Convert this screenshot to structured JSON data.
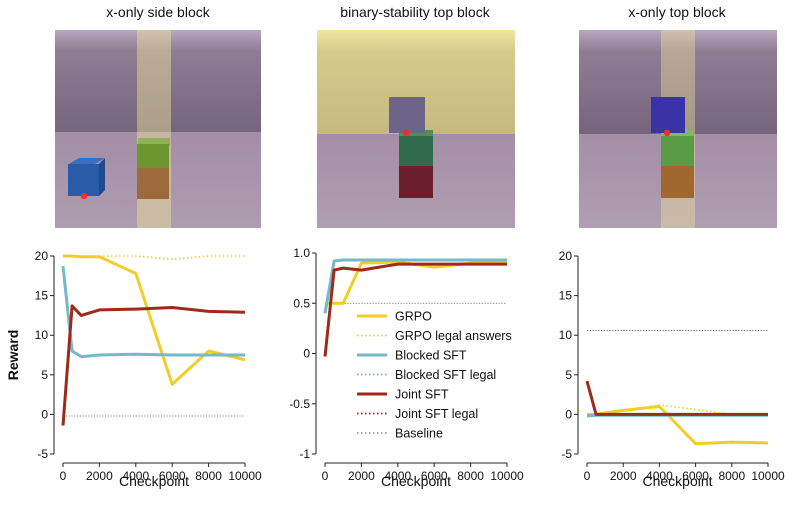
{
  "panels": [
    {
      "title": "x-only side block",
      "scene": "Two-cube tower with a blue cube on the floor to the left"
    },
    {
      "title": "binary-stability top block",
      "scene": "Purple cube placed on top of a two-cube tower"
    },
    {
      "title": "x-only top block",
      "scene": "Blue cube on top of green and orange cubes"
    }
  ],
  "colors": {
    "grpo": "#f2cd2a",
    "blocked": "#74b8c9",
    "joint": "#9c2b1a",
    "baseline": "#555555"
  },
  "legend": {
    "items": [
      {
        "label": "GRPO",
        "series": "grpo",
        "style": "solid"
      },
      {
        "label": "GRPO legal answers",
        "series": "grpo",
        "style": "dotted"
      },
      {
        "label": "Blocked SFT",
        "series": "blocked",
        "style": "solid"
      },
      {
        "label": "Blocked SFT legal",
        "series": "blocked",
        "style": "dotted"
      },
      {
        "label": "Joint SFT",
        "series": "joint",
        "style": "solid"
      },
      {
        "label": "Joint SFT legal",
        "series": "joint",
        "style": "dotted"
      },
      {
        "label": "Baseline",
        "series": "baseline",
        "style": "dotted"
      }
    ]
  },
  "chart_data": [
    {
      "type": "line",
      "title": "x-only side block",
      "xlabel": "Checkpoint",
      "ylabel": "Reward",
      "xlim": [
        0,
        10000
      ],
      "ylim": [
        -5,
        20
      ],
      "xticks": [
        0,
        2000,
        4000,
        6000,
        8000,
        10000
      ],
      "yticks": [
        -5,
        0,
        5,
        10,
        15,
        20
      ],
      "baseline": -0.2,
      "series": [
        {
          "name": "GRPO legal answers",
          "key": "grpo",
          "style": "dotted",
          "x": [
            0,
            500,
            1000,
            2000,
            4000,
            6000,
            8000,
            10000
          ],
          "y": [
            20,
            20,
            20,
            20,
            20,
            19.6,
            20,
            20
          ]
        },
        {
          "name": "Blocked SFT legal",
          "key": "blocked",
          "style": "dotted",
          "x": [
            0,
            500,
            1000,
            2000,
            4000,
            6000,
            8000,
            10000
          ],
          "y": [
            18.7,
            8.0,
            7.3,
            7.5,
            7.6,
            7.5,
            7.5,
            7.5
          ]
        },
        {
          "name": "Joint SFT legal",
          "key": "joint",
          "style": "dotted",
          "x": [
            0,
            500,
            1000,
            2000,
            4000,
            6000,
            8000,
            10000
          ],
          "y": [
            -1.4,
            13.7,
            12.5,
            13.2,
            13.3,
            13.5,
            13.0,
            12.9
          ]
        },
        {
          "name": "GRPO",
          "key": "grpo",
          "style": "solid",
          "x": [
            0,
            500,
            1000,
            2000,
            4000,
            6000,
            8000,
            10000
          ],
          "y": [
            20,
            20,
            19.9,
            19.9,
            17.8,
            3.8,
            8.0,
            6.9
          ]
        },
        {
          "name": "Blocked SFT",
          "key": "blocked",
          "style": "solid",
          "x": [
            0,
            500,
            1000,
            2000,
            4000,
            6000,
            8000,
            10000
          ],
          "y": [
            18.7,
            8.0,
            7.3,
            7.5,
            7.6,
            7.5,
            7.5,
            7.5
          ]
        },
        {
          "name": "Joint SFT",
          "key": "joint",
          "style": "solid",
          "x": [
            0,
            500,
            1000,
            2000,
            4000,
            6000,
            8000,
            10000
          ],
          "y": [
            -1.4,
            13.7,
            12.5,
            13.2,
            13.3,
            13.5,
            13.0,
            12.9
          ]
        }
      ]
    },
    {
      "type": "line",
      "title": "binary-stability top block",
      "xlabel": "Checkpoint",
      "ylabel": "",
      "xlim": [
        0,
        10000
      ],
      "ylim": [
        -1,
        1
      ],
      "xticks": [
        0,
        2000,
        4000,
        6000,
        8000,
        10000
      ],
      "yticks": [
        -1,
        -0.5,
        0,
        0.5,
        1
      ],
      "ytick_labels": [
        "-1",
        "-0.5",
        "0",
        "0.5",
        "1.0"
      ],
      "baseline": 0.5,
      "series": [
        {
          "name": "GRPO legal answers",
          "key": "grpo",
          "style": "dotted",
          "x": [
            0,
            500,
            1000,
            2000,
            4000,
            6000,
            8000,
            10000
          ],
          "y": [
            0.5,
            0.5,
            0.5,
            0.9,
            0.91,
            0.86,
            0.9,
            0.92
          ]
        },
        {
          "name": "Blocked SFT legal",
          "key": "blocked",
          "style": "dotted",
          "x": [
            0,
            500,
            1000,
            2000,
            4000,
            6000,
            8000,
            10000
          ],
          "y": [
            0.4,
            0.92,
            0.93,
            0.93,
            0.93,
            0.93,
            0.93,
            0.93
          ]
        },
        {
          "name": "Joint SFT legal",
          "key": "joint",
          "style": "dotted",
          "x": [
            0,
            500,
            1000,
            2000,
            4000,
            6000,
            8000,
            10000
          ],
          "y": [
            -0.03,
            0.83,
            0.85,
            0.83,
            0.89,
            0.89,
            0.89,
            0.89
          ]
        },
        {
          "name": "GRPO",
          "key": "grpo",
          "style": "solid",
          "x": [
            0,
            500,
            1000,
            2000,
            4000,
            6000,
            8000,
            10000
          ],
          "y": [
            0.5,
            0.5,
            0.5,
            0.9,
            0.91,
            0.86,
            0.9,
            0.92
          ]
        },
        {
          "name": "Blocked SFT",
          "key": "blocked",
          "style": "solid",
          "x": [
            0,
            500,
            1000,
            2000,
            4000,
            6000,
            8000,
            10000
          ],
          "y": [
            0.4,
            0.92,
            0.93,
            0.93,
            0.93,
            0.93,
            0.93,
            0.93
          ]
        },
        {
          "name": "Joint SFT",
          "key": "joint",
          "style": "solid",
          "x": [
            0,
            500,
            1000,
            2000,
            4000,
            6000,
            8000,
            10000
          ],
          "y": [
            -0.03,
            0.83,
            0.85,
            0.83,
            0.89,
            0.89,
            0.89,
            0.89
          ]
        }
      ]
    },
    {
      "type": "line",
      "title": "x-only top block",
      "xlabel": "Checkpoint",
      "ylabel": "",
      "xlim": [
        0,
        10000
      ],
      "ylim": [
        -5,
        20
      ],
      "xticks": [
        0,
        2000,
        4000,
        6000,
        8000,
        10000
      ],
      "yticks": [
        -5,
        0,
        5,
        10,
        15,
        20
      ],
      "baseline": 10.6,
      "series": [
        {
          "name": "GRPO legal answers",
          "key": "grpo",
          "style": "dotted",
          "x": [
            0,
            500,
            1000,
            2000,
            4000,
            6000,
            8000,
            10000
          ],
          "y": [
            0,
            0,
            0.2,
            0.5,
            1.2,
            0.6,
            0,
            0
          ]
        },
        {
          "name": "Blocked SFT legal",
          "key": "blocked",
          "style": "dotted",
          "x": [
            0,
            500,
            1000,
            2000,
            4000,
            6000,
            8000,
            10000
          ],
          "y": [
            -0.2,
            -0.1,
            -0.1,
            -0.1,
            -0.1,
            -0.1,
            -0.1,
            -0.1
          ]
        },
        {
          "name": "Joint SFT legal",
          "key": "joint",
          "style": "dotted",
          "x": [
            0,
            500,
            1000,
            2000,
            4000,
            6000,
            8000,
            10000
          ],
          "y": [
            4.2,
            0,
            0,
            0,
            0,
            0,
            0,
            0
          ]
        },
        {
          "name": "GRPO",
          "key": "grpo",
          "style": "solid",
          "x": [
            0,
            500,
            1000,
            2000,
            4000,
            6000,
            8000,
            10000
          ],
          "y": [
            0,
            0,
            0.2,
            0.5,
            1.0,
            -3.7,
            -3.5,
            -3.6
          ]
        },
        {
          "name": "Blocked SFT",
          "key": "blocked",
          "style": "solid",
          "x": [
            0,
            500,
            1000,
            2000,
            4000,
            6000,
            8000,
            10000
          ],
          "y": [
            -0.2,
            -0.1,
            -0.1,
            -0.1,
            -0.1,
            -0.1,
            -0.1,
            -0.1
          ]
        },
        {
          "name": "Joint SFT",
          "key": "joint",
          "style": "solid",
          "x": [
            0,
            500,
            1000,
            2000,
            4000,
            6000,
            8000,
            10000
          ],
          "y": [
            4.2,
            0,
            0,
            0,
            0,
            0,
            0,
            0
          ]
        }
      ]
    }
  ]
}
